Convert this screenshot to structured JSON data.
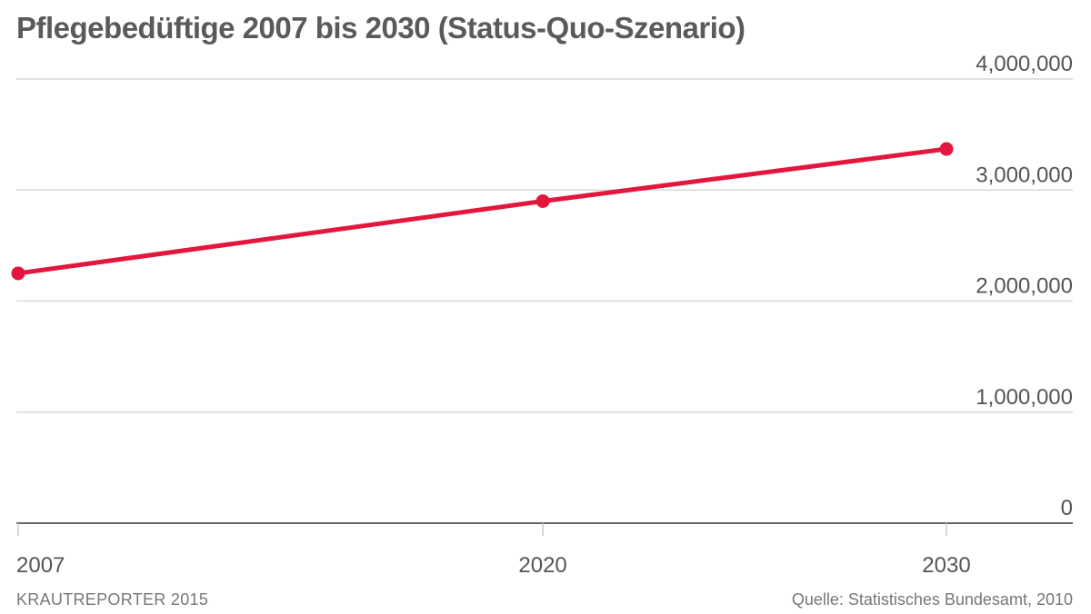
{
  "chart_data": {
    "type": "line",
    "title": "Pflegebedüftige 2007 bis 2030 (Status-Quo-Szenario)",
    "xlabel": "",
    "ylabel": "",
    "x": [
      2007,
      2020,
      2030
    ],
    "x_tick_labels": [
      "2007",
      "2020",
      "2030"
    ],
    "ylim": [
      0,
      4000000
    ],
    "y_ticks": [
      0,
      1000000,
      2000000,
      3000000,
      4000000
    ],
    "y_tick_labels": [
      "0",
      "1,000,000",
      "2,000,000",
      "3,000,000",
      "4,000,000"
    ],
    "series": [
      {
        "values": [
          2250000,
          2900000,
          3370000
        ],
        "color": "#e3173e"
      }
    ],
    "grid": true,
    "y_axis_position": "right"
  },
  "footer": {
    "credit": "KRAUTREPORTER 2015",
    "source": "Quelle: Statistisches Bundesamt, 2010"
  },
  "colors": {
    "line": "#e3173e",
    "grid": "#d9d9d9",
    "baseline": "#333333",
    "text": "#555555"
  }
}
